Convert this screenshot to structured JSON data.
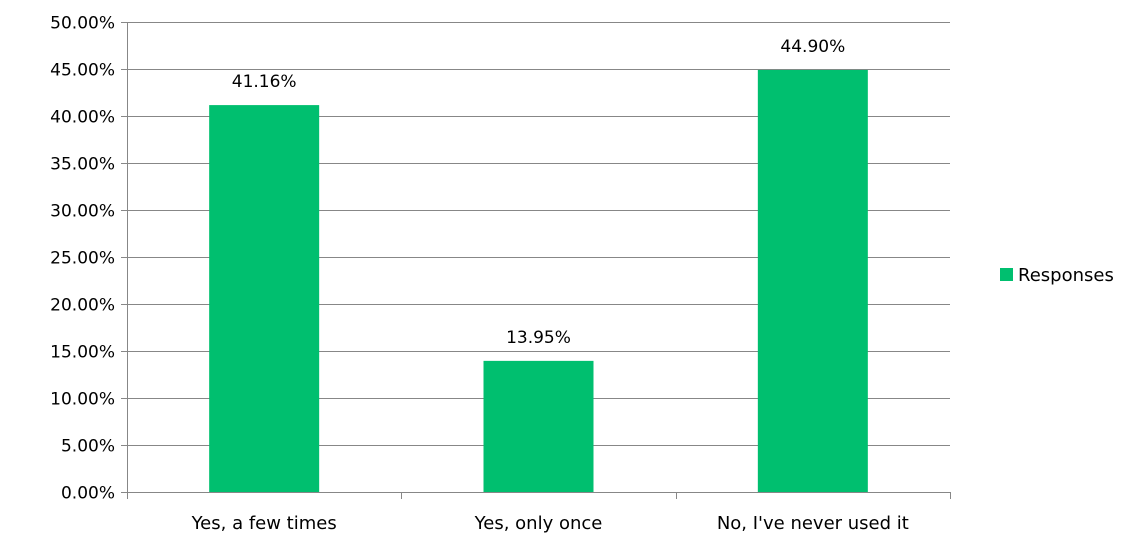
{
  "chart_data": {
    "type": "bar",
    "categories": [
      "Yes, a few times",
      "Yes, only once",
      "No, I've never used it"
    ],
    "series": [
      {
        "name": "Responses",
        "values": [
          41.16,
          13.95,
          44.9
        ],
        "data_labels": [
          "41.16%",
          "13.95%",
          "44.90%"
        ]
      }
    ],
    "ylim": [
      0,
      50
    ],
    "ytick_step": 5,
    "ytick_labels": [
      "0.00%",
      "5.00%",
      "10.00%",
      "15.00%",
      "20.00%",
      "25.00%",
      "30.00%",
      "35.00%",
      "40.00%",
      "45.00%",
      "50.00%"
    ],
    "grid": true,
    "legend_position": "right",
    "title": "",
    "xlabel": "",
    "ylabel": "",
    "colors": {
      "bar": "#00bf6f",
      "grid": "#878787",
      "axis": "#878787"
    }
  }
}
